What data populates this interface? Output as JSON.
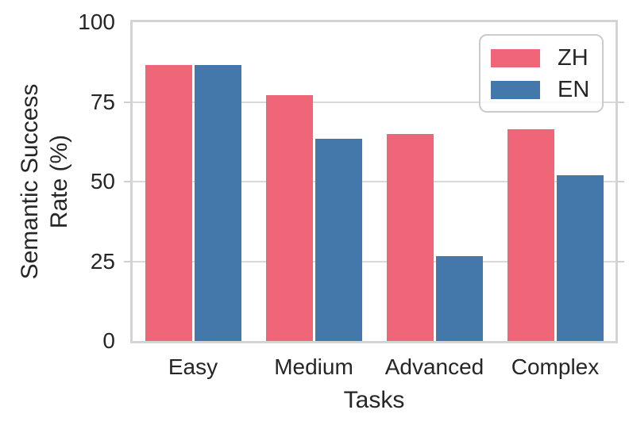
{
  "chart_data": {
    "type": "bar",
    "title": "",
    "categories": [
      "Easy",
      "Medium",
      "Advanced",
      "Complex"
    ],
    "series": [
      {
        "name": "ZH",
        "color": "#EE6677",
        "values": [
          86.5,
          77,
          65,
          66.5
        ]
      },
      {
        "name": "EN",
        "color": "#4477AA",
        "values": [
          86.5,
          63.5,
          26.5,
          52
        ]
      }
    ],
    "xlabel": "Tasks",
    "ylabel_lines": [
      "Semantic Success",
      "Rate (%)"
    ],
    "ylabel": "Semantic Success Rate (%)",
    "ylim": [
      0,
      100
    ],
    "yticks": [
      0,
      25,
      50,
      75,
      100
    ],
    "grid": true,
    "legend_position": "upper-right"
  },
  "colors": {
    "background": "#ffffff",
    "spine": "#d4d4d4",
    "gridline": "#d9d9d9",
    "tick": "#d0d0d0",
    "text": "#262626",
    "legend_border": "#cbcbcb"
  }
}
